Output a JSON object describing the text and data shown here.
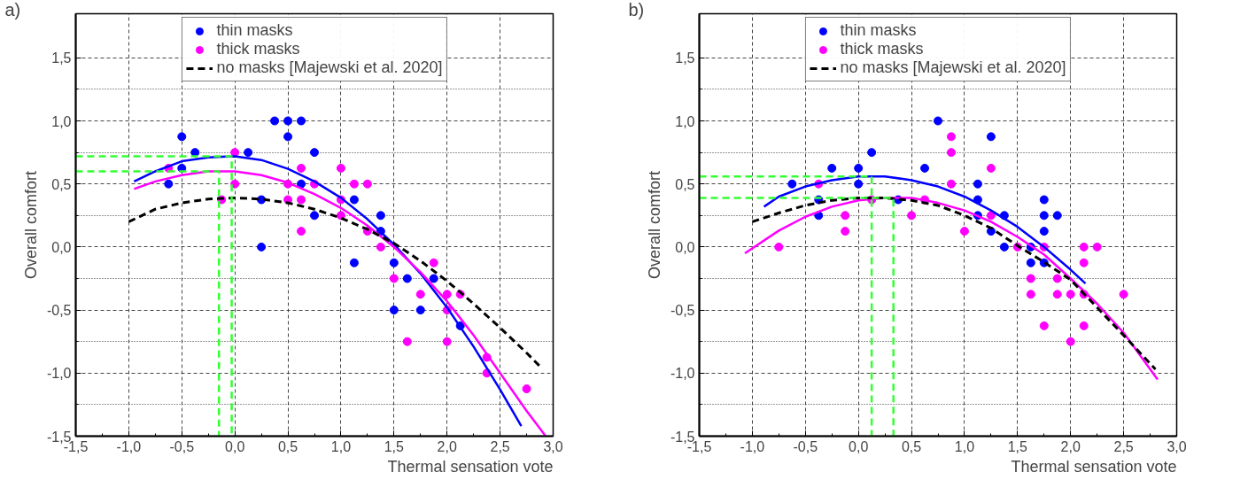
{
  "chart_data": [
    {
      "type": "scatter",
      "title": "a)",
      "xlabel": "Thermal sensation vote",
      "ylabel": "Overall comfort",
      "xlim": [
        -1.5,
        3.0
      ],
      "ylim": [
        -1.5,
        1.85
      ],
      "xticks": [
        {
          "value": -1.5,
          "label": "-1,5"
        },
        {
          "value": -1.25,
          "label": null
        },
        {
          "value": -1.0,
          "label": "-1,0"
        },
        {
          "value": -0.75,
          "label": null
        },
        {
          "value": -0.5,
          "label": "-0,5"
        },
        {
          "value": -0.25,
          "label": null
        },
        {
          "value": 0.0,
          "label": "0,0"
        },
        {
          "value": 0.25,
          "label": null
        },
        {
          "value": 0.5,
          "label": "0,5"
        },
        {
          "value": 0.75,
          "label": null
        },
        {
          "value": 1.0,
          "label": "1,0"
        },
        {
          "value": 1.25,
          "label": null
        },
        {
          "value": 1.5,
          "label": "1,5"
        },
        {
          "value": 1.75,
          "label": null
        },
        {
          "value": 2.0,
          "label": "2,0"
        },
        {
          "value": 2.25,
          "label": null
        },
        {
          "value": 2.5,
          "label": "2,5"
        },
        {
          "value": 2.75,
          "label": null
        },
        {
          "value": 3.0,
          "label": "3,0"
        }
      ],
      "yticks": [
        {
          "value": -1.5,
          "label": "-1,5"
        },
        {
          "value": -1.25,
          "label": null
        },
        {
          "value": -1.0,
          "label": "-1,0"
        },
        {
          "value": -0.75,
          "label": null
        },
        {
          "value": -0.5,
          "label": "-0,5"
        },
        {
          "value": -0.25,
          "label": null
        },
        {
          "value": 0.0,
          "label": "0,0"
        },
        {
          "value": 0.25,
          "label": null
        },
        {
          "value": 0.5,
          "label": "0,5"
        },
        {
          "value": 0.75,
          "label": null
        },
        {
          "value": 1.0,
          "label": "1,0"
        },
        {
          "value": 1.25,
          "label": null
        },
        {
          "value": 1.5,
          "label": "1,5"
        }
      ],
      "grid": true,
      "legend": "top",
      "series": [
        {
          "name": "thin masks",
          "marker": "circle",
          "color": "#0000ff",
          "x": [
            -0.625,
            -0.5,
            -0.5,
            -0.375,
            0.125,
            0.25,
            0.25,
            0.375,
            0.5,
            0.5,
            0.625,
            0.625,
            0.75,
            0.75,
            1.125,
            1.125,
            1.375,
            1.375,
            1.5,
            1.5,
            1.625,
            1.75,
            1.875,
            2.125
          ],
          "values": [
            0.5,
            0.875,
            0.625,
            0.75,
            0.75,
            0.375,
            0.0,
            1.0,
            1.0,
            0.875,
            1.0,
            0.5,
            0.75,
            0.25,
            0.375,
            -0.125,
            0.25,
            0.125,
            -0.125,
            -0.5,
            -0.25,
            -0.5,
            -0.25,
            -0.625
          ]
        },
        {
          "name": "thick masks",
          "marker": "circle",
          "color": "#ff00ff",
          "x": [
            -0.625,
            -0.125,
            0.0,
            0.0,
            0.5,
            0.5,
            0.625,
            0.625,
            0.625,
            0.75,
            1.0,
            1.0,
            1.0,
            1.125,
            1.25,
            1.25,
            1.375,
            1.5,
            1.625,
            1.75,
            1.875,
            2.0,
            2.0,
            2.0,
            2.125,
            2.375,
            2.375,
            2.75
          ],
          "values": [
            0.625,
            0.375,
            0.75,
            0.5,
            0.5,
            0.375,
            0.625,
            0.375,
            0.125,
            0.5,
            0.625,
            0.375,
            0.25,
            0.5,
            0.5,
            0.125,
            0.0,
            -0.25,
            -0.75,
            -0.375,
            -0.125,
            -0.375,
            -0.75,
            -0.5,
            -0.375,
            -0.875,
            -1.0,
            -1.125
          ]
        },
        {
          "type": "line",
          "line_style": "solid",
          "color": "#0000ff",
          "x": [
            -0.95,
            -0.75,
            -0.5,
            -0.25,
            0.0,
            0.25,
            0.5,
            0.75,
            1.0,
            1.25,
            1.5,
            1.75,
            2.0,
            2.25,
            2.5,
            2.7
          ],
          "values": [
            0.52,
            0.6,
            0.68,
            0.71,
            0.72,
            0.69,
            0.62,
            0.52,
            0.39,
            0.22,
            0.02,
            -0.21,
            -0.48,
            -0.79,
            -1.13,
            -1.42
          ]
        },
        {
          "type": "line",
          "line_style": "solid",
          "color": "#ff00ff",
          "x": [
            -0.95,
            -0.75,
            -0.5,
            -0.25,
            0.0,
            0.25,
            0.5,
            0.75,
            1.0,
            1.25,
            1.5,
            1.75,
            2.0,
            2.25,
            2.5,
            2.75,
            2.93
          ],
          "values": [
            0.46,
            0.52,
            0.57,
            0.6,
            0.6,
            0.57,
            0.51,
            0.42,
            0.31,
            0.17,
            0.0,
            -0.2,
            -0.43,
            -0.7,
            -1.0,
            -1.3,
            -1.5
          ]
        },
        {
          "name": "no masks [Majewski et al. 2020]",
          "type": "line",
          "line_style": "dashed",
          "color": "#000000",
          "x": [
            -1.0,
            -0.75,
            -0.5,
            -0.25,
            0.0,
            0.25,
            0.5,
            0.75,
            1.0,
            1.25,
            1.5,
            1.75,
            2.0,
            2.25,
            2.5,
            2.75,
            2.88
          ],
          "values": [
            0.2,
            0.3,
            0.35,
            0.38,
            0.39,
            0.38,
            0.35,
            0.3,
            0.23,
            0.14,
            0.03,
            -0.11,
            -0.27,
            -0.45,
            -0.64,
            -0.84,
            -0.95
          ]
        },
        {
          "type": "line",
          "line_style": "dashed",
          "color": "#33ff33",
          "x": [
            -1.5,
            -0.03,
            -0.03
          ],
          "values": [
            0.72,
            0.72,
            -1.5
          ]
        },
        {
          "type": "line",
          "line_style": "dashed",
          "color": "#33ff33",
          "x": [
            -1.5,
            -0.15,
            -0.15
          ],
          "values": [
            0.6,
            0.6,
            -1.5
          ]
        }
      ]
    },
    {
      "type": "scatter",
      "title": "b)",
      "xlabel": "Thermal sensation vote",
      "ylabel": "Overall comfort",
      "xlim": [
        -1.5,
        3.0
      ],
      "ylim": [
        -1.5,
        1.85
      ],
      "xticks": [
        {
          "value": -1.5,
          "label": "-1,5"
        },
        {
          "value": -1.25,
          "label": null
        },
        {
          "value": -1.0,
          "label": "-1,0"
        },
        {
          "value": -0.75,
          "label": null
        },
        {
          "value": -0.5,
          "label": "-0,5"
        },
        {
          "value": -0.25,
          "label": null
        },
        {
          "value": 0.0,
          "label": "0,0"
        },
        {
          "value": 0.25,
          "label": null
        },
        {
          "value": 0.5,
          "label": "0,5"
        },
        {
          "value": 0.75,
          "label": null
        },
        {
          "value": 1.0,
          "label": "1,0"
        },
        {
          "value": 1.25,
          "label": null
        },
        {
          "value": 1.5,
          "label": "1,5"
        },
        {
          "value": 1.75,
          "label": null
        },
        {
          "value": 2.0,
          "label": "2,0"
        },
        {
          "value": 2.25,
          "label": null
        },
        {
          "value": 2.5,
          "label": "2,5"
        },
        {
          "value": 2.75,
          "label": null
        },
        {
          "value": 3.0,
          "label": "3,0"
        }
      ],
      "yticks": [
        {
          "value": -1.5,
          "label": "-1,5"
        },
        {
          "value": -1.25,
          "label": null
        },
        {
          "value": -1.0,
          "label": "-1,0"
        },
        {
          "value": -0.75,
          "label": null
        },
        {
          "value": -0.5,
          "label": "-0,5"
        },
        {
          "value": -0.25,
          "label": null
        },
        {
          "value": 0.0,
          "label": "0,0"
        },
        {
          "value": 0.25,
          "label": null
        },
        {
          "value": 0.5,
          "label": "0,5"
        },
        {
          "value": 0.75,
          "label": null
        },
        {
          "value": 1.0,
          "label": "1,0"
        },
        {
          "value": 1.25,
          "label": null
        },
        {
          "value": 1.5,
          "label": "1,5"
        }
      ],
      "grid": true,
      "legend": "top",
      "series": [
        {
          "name": "thin masks",
          "marker": "circle",
          "color": "#0000ff",
          "x": [
            -0.625,
            -0.375,
            -0.375,
            -0.25,
            0.0,
            0.0,
            0.125,
            0.375,
            0.625,
            0.75,
            1.125,
            1.125,
            1.125,
            1.25,
            1.25,
            1.375,
            1.375,
            1.625,
            1.625,
            1.75,
            1.75,
            1.75,
            1.75,
            1.875
          ],
          "values": [
            0.5,
            0.375,
            0.25,
            0.625,
            0.625,
            0.5,
            0.75,
            0.375,
            0.625,
            1.0,
            0.5,
            0.375,
            0.25,
            0.875,
            0.125,
            0.25,
            0.0,
            0.0,
            -0.125,
            0.375,
            0.25,
            0.125,
            -0.125,
            0.25
          ]
        },
        {
          "name": "thick masks",
          "marker": "circle",
          "color": "#ff00ff",
          "x": [
            -0.75,
            -0.375,
            -0.125,
            -0.125,
            0.125,
            0.5,
            0.625,
            0.875,
            0.875,
            0.875,
            1.0,
            1.25,
            1.25,
            1.5,
            1.625,
            1.625,
            1.75,
            1.75,
            1.875,
            1.875,
            2.0,
            2.0,
            2.125,
            2.125,
            2.125,
            2.125,
            2.25,
            2.5
          ],
          "values": [
            0.0,
            0.5,
            0.25,
            0.125,
            0.375,
            0.25,
            0.375,
            0.875,
            0.75,
            0.5,
            0.125,
            0.625,
            0.25,
            0.0,
            -0.25,
            -0.375,
            0.0,
            -0.625,
            -0.25,
            -0.375,
            -0.375,
            -0.75,
            0.0,
            -0.125,
            -0.375,
            -0.625,
            0.0,
            -0.375
          ]
        },
        {
          "type": "line",
          "line_style": "solid",
          "color": "#0000ff",
          "x": [
            -0.89,
            -0.75,
            -0.5,
            -0.25,
            0.0,
            0.25,
            0.5,
            0.75,
            1.0,
            1.25,
            1.5,
            1.75,
            2.0,
            2.14
          ],
          "values": [
            0.32,
            0.4,
            0.48,
            0.53,
            0.56,
            0.56,
            0.53,
            0.48,
            0.4,
            0.29,
            0.16,
            0.0,
            -0.18,
            -0.29
          ]
        },
        {
          "type": "line",
          "line_style": "solid",
          "color": "#ff00ff",
          "x": [
            -1.07,
            -0.75,
            -0.5,
            -0.25,
            0.0,
            0.25,
            0.5,
            0.75,
            1.0,
            1.25,
            1.5,
            1.75,
            2.0,
            2.25,
            2.5,
            2.82
          ],
          "values": [
            -0.05,
            0.13,
            0.24,
            0.32,
            0.37,
            0.39,
            0.39,
            0.35,
            0.29,
            0.2,
            0.08,
            -0.06,
            -0.25,
            -0.45,
            -0.68,
            -1.05
          ]
        },
        {
          "name": "no masks [Majewski et al. 2020]",
          "type": "line",
          "line_style": "dashed",
          "color": "#000000",
          "x": [
            -1.0,
            -0.75,
            -0.5,
            -0.25,
            0.0,
            0.25,
            0.5,
            0.75,
            1.0,
            1.25,
            1.5,
            1.75,
            2.0,
            2.25,
            2.5,
            2.8
          ],
          "values": [
            0.2,
            0.27,
            0.33,
            0.37,
            0.39,
            0.39,
            0.37,
            0.33,
            0.25,
            0.15,
            0.01,
            -0.12,
            -0.26,
            -0.48,
            -0.7,
            -0.97
          ]
        },
        {
          "type": "line",
          "line_style": "dashed",
          "color": "#33ff33",
          "x": [
            -1.5,
            0.125,
            0.125
          ],
          "values": [
            0.56,
            0.56,
            -1.5
          ]
        },
        {
          "type": "line",
          "line_style": "dashed",
          "color": "#33ff33",
          "x": [
            -1.5,
            0.33,
            0.33
          ],
          "values": [
            0.39,
            0.39,
            -1.5
          ]
        }
      ]
    }
  ]
}
